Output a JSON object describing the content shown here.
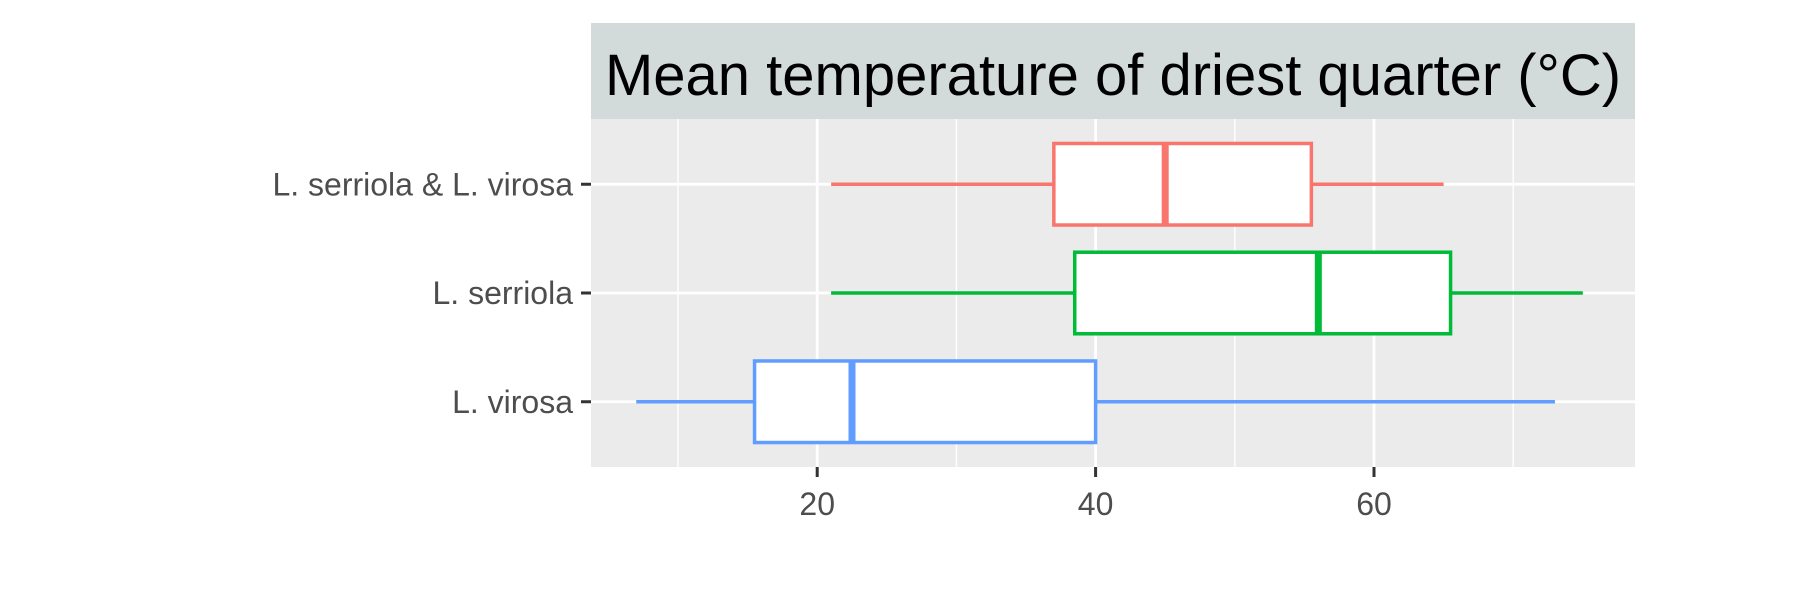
{
  "chart_data": {
    "type": "boxplot",
    "orientation": "horizontal",
    "title": "Mean temperature of driest quarter (°C)",
    "xlabel": "",
    "ylabel": "",
    "xlim": [
      3.75,
      78.75
    ],
    "x_ticks": [
      20,
      40,
      60
    ],
    "x_minor_ticks": [
      10,
      30,
      50,
      70
    ],
    "categories": [
      "L. serriola & L. virosa",
      "L. serriola",
      "L. virosa"
    ],
    "series": [
      {
        "name": "L. serriola & L. virosa",
        "color": "#F8766D",
        "min": 21,
        "q1": 37,
        "median": 45,
        "q3": 55.5,
        "max": 65
      },
      {
        "name": "L. serriola",
        "color": "#00BA38",
        "min": 21,
        "q1": 38.5,
        "median": 56,
        "q3": 65.5,
        "max": 75
      },
      {
        "name": "L. virosa",
        "color": "#619CFF",
        "min": 7,
        "q1": 15.5,
        "median": 22.5,
        "q3": 40,
        "max": 73
      }
    ],
    "grid": true,
    "legend": "none",
    "colors": {
      "panel_background": "#EBEBEB",
      "strip_background": "#D3DBDA",
      "grid": "#FFFFFF",
      "tick_label": "#4D4D4D",
      "tick": "#333333"
    }
  }
}
